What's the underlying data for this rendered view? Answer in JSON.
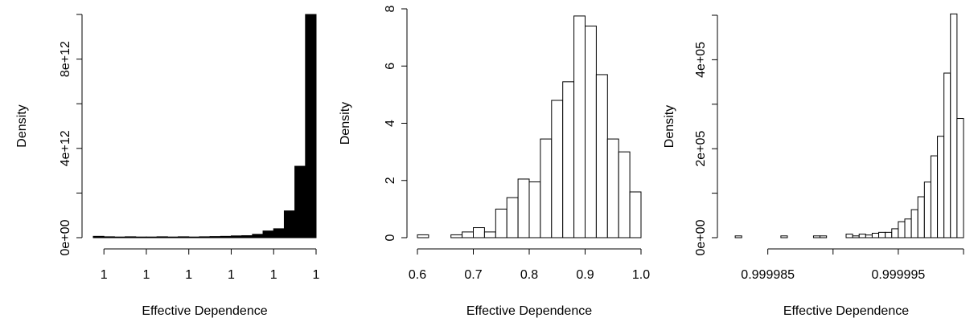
{
  "chart_data": [
    {
      "type": "histogram",
      "xlabel": "Effective Dependence",
      "ylabel": "Density",
      "bins": [
        0.99999999999895,
        0.999999999999,
        0.99999999999905,
        0.9999999999991,
        0.99999999999915,
        0.9999999999992,
        0.99999999999925,
        0.9999999999993,
        0.99999999999935,
        0.9999999999994,
        0.99999999999945,
        0.9999999999995,
        0.99999999999955,
        0.9999999999996,
        0.99999999999965,
        0.9999999999997,
        0.99999999999975,
        0.9999999999998,
        0.99999999999985,
        0.9999999999999,
        0.99999999999995,
        1
      ],
      "values": [
        60000000000,
        40000000000,
        30000000000,
        40000000000,
        30000000000,
        30000000000,
        40000000000,
        30000000000,
        40000000000,
        30000000000,
        40000000000,
        50000000000,
        60000000000,
        80000000000,
        90000000000,
        150000000000,
        300000000000,
        400000000000,
        1200000000000,
        3200000000000,
        10000000000000
      ],
      "color": "#000000",
      "xlim": [
        0.99999999999895,
        1
      ],
      "xticks": [
        {
          "value": 0.999999999999,
          "label": "1"
        },
        {
          "value": 0.9999999999992,
          "label": "1"
        },
        {
          "value": 0.9999999999994,
          "label": "1"
        },
        {
          "value": 0.9999999999996,
          "label": "1"
        },
        {
          "value": 0.9999999999998,
          "label": "1"
        },
        1
      ],
      "ylim": [
        0,
        10000000000000
      ],
      "yticks": [
        {
          "value": 0,
          "label": "0e+00"
        },
        {
          "value": 2000000000000,
          "label": null
        },
        {
          "value": 4000000000000,
          "label": "4e+12"
        },
        {
          "value": 6000000000000,
          "label": null
        },
        {
          "value": 8000000000000,
          "label": "8e+12"
        },
        {
          "value": 10000000000000,
          "label": null
        }
      ]
    },
    {
      "type": "histogram",
      "xlabel": "Effective Dependence",
      "ylabel": "Density",
      "bins": [
        0.6,
        0.62,
        0.64,
        0.66,
        0.68,
        0.7,
        0.72,
        0.74,
        0.76,
        0.78,
        0.8,
        0.82,
        0.84,
        0.86,
        0.88,
        0.9,
        0.92,
        0.94,
        0.96,
        0.98,
        1.0
      ],
      "values": [
        0.1,
        0,
        0,
        0.1,
        0.2,
        0.35,
        0.2,
        1.0,
        1.4,
        2.05,
        1.95,
        3.45,
        4.8,
        5.45,
        7.75,
        7.4,
        5.7,
        3.45,
        3.0,
        1.6
      ],
      "color": "#ffffff",
      "xlim": [
        0.6,
        1.0
      ],
      "xticks": [
        0.6,
        0.7,
        0.8,
        0.9,
        {
          "value": 1.0,
          "label": "1.0"
        }
      ],
      "ylim": [
        0,
        8
      ],
      "yticks": [
        0,
        2,
        4,
        6,
        8
      ]
    },
    {
      "type": "histogram",
      "xlabel": "Effective Dependence",
      "ylabel": "Density",
      "bins": [
        0.9999825,
        0.999983,
        0.9999835,
        0.999984,
        0.9999845,
        0.999985,
        0.9999855,
        0.999986,
        0.9999865,
        0.999987,
        0.9999875,
        0.999988,
        0.9999885,
        0.999989,
        0.9999895,
        0.99999,
        0.9999905,
        0.999991,
        0.9999915,
        0.999992,
        0.9999925,
        0.999993,
        0.9999935,
        0.999994,
        0.9999945,
        0.999995,
        0.9999955,
        0.999996,
        0.9999965,
        0.999997,
        0.9999975,
        0.999998,
        0.9999985,
        0.999999,
        0.9999995,
        1
      ],
      "values": [
        4000,
        0,
        0,
        0,
        0,
        0,
        0,
        4000,
        0,
        0,
        0,
        0,
        4000,
        4000,
        0,
        0,
        0,
        8000,
        4000,
        8000,
        6000,
        10000,
        12000,
        12000,
        20000,
        36000,
        42000,
        63000,
        92000,
        125000,
        184000,
        228000,
        370000,
        503000,
        268000
      ],
      "color": "#ffffff",
      "xlim": [
        0.999982,
        1
      ],
      "xticks": [
        0.999985,
        {
          "value": 0.99999,
          "label": null
        },
        0.999995,
        {
          "value": 1,
          "label": null
        }
      ],
      "ylim": [
        0,
        500000
      ],
      "yticks": [
        {
          "value": 0,
          "label": "0e+00"
        },
        {
          "value": 100000,
          "label": null
        },
        {
          "value": 200000,
          "label": "2e+05"
        },
        {
          "value": 300000,
          "label": null
        },
        {
          "value": 400000,
          "label": "4e+05"
        },
        {
          "value": 500000,
          "label": null
        }
      ]
    }
  ]
}
